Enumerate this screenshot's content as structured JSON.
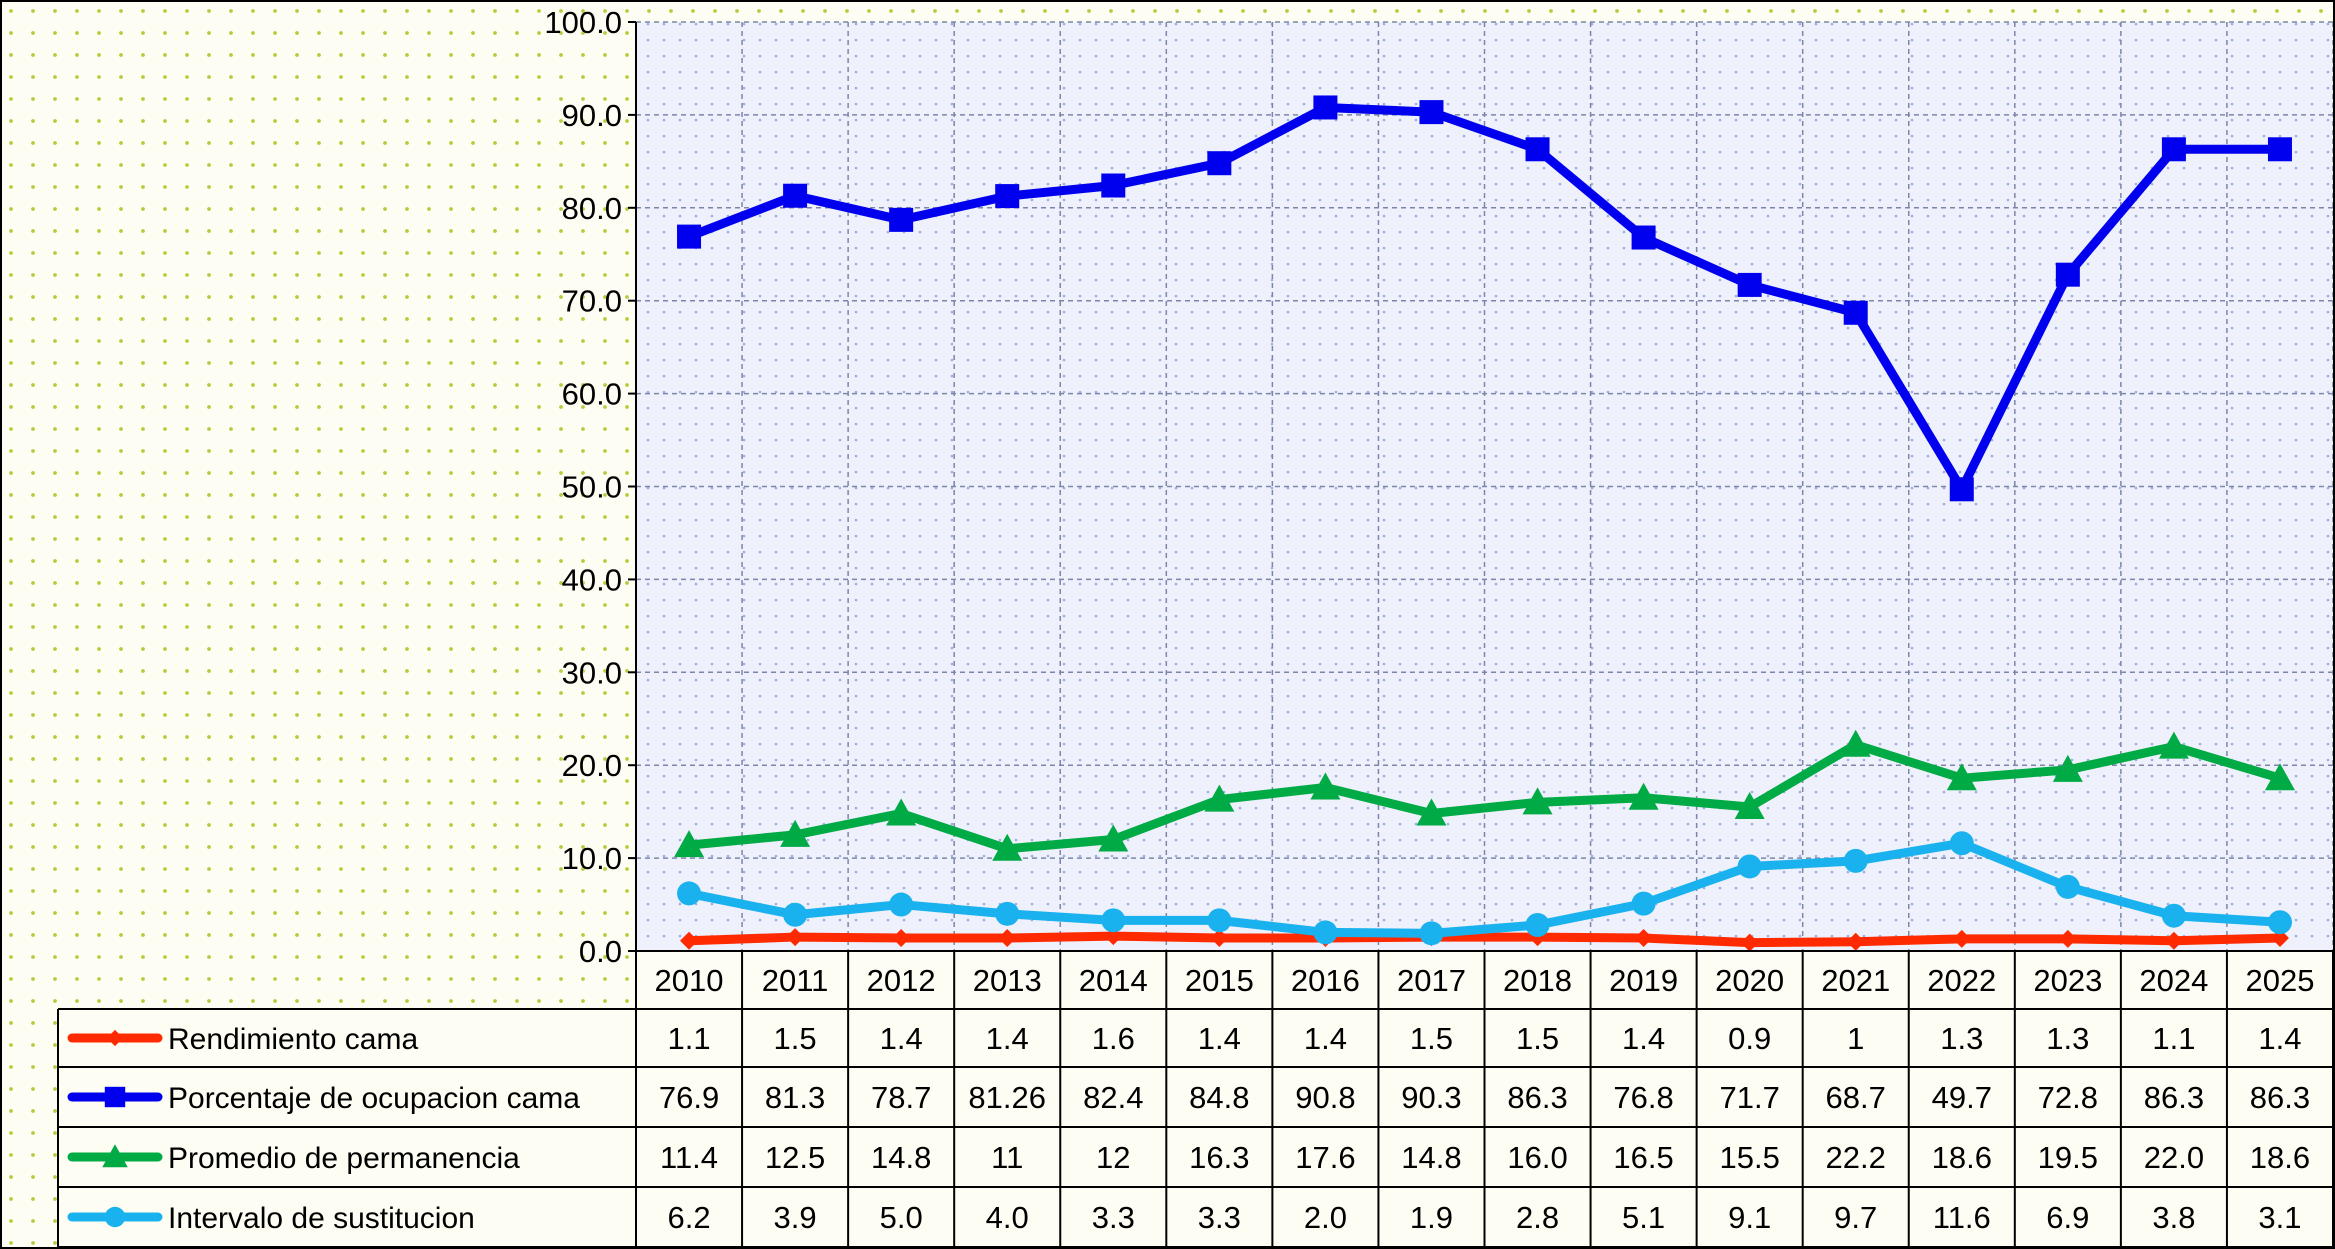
{
  "chart_data": {
    "type": "line",
    "categories": [
      "2010",
      "2011",
      "2012",
      "2013",
      "2014",
      "2015",
      "2016",
      "2017",
      "2018",
      "2019",
      "2020",
      "2021",
      "2022",
      "2023",
      "2024",
      "2025"
    ],
    "ylim": [
      0,
      100
    ],
    "yticks": [
      "0.0",
      "10.0",
      "20.0",
      "30.0",
      "40.0",
      "50.0",
      "60.0",
      "70.0",
      "80.0",
      "90.0",
      "100.0"
    ],
    "grid": true,
    "legend": "table-below",
    "series": [
      {
        "name": "Rendimiento cama",
        "color": "#ff2a00",
        "marker": "diamond",
        "values": [
          1.1,
          1.5,
          1.4,
          1.4,
          1.6,
          1.4,
          1.4,
          1.5,
          1.5,
          1.4,
          0.9,
          1,
          1.3,
          1.3,
          1.1,
          1.4
        ],
        "labels": [
          "1.1",
          "1.5",
          "1.4",
          "1.4",
          "1.6",
          "1.4",
          "1.4",
          "1.5",
          "1.5",
          "1.4",
          "0.9",
          "1",
          "1.3",
          "1.3",
          "1.1",
          "1.4"
        ]
      },
      {
        "name": "Porcentaje de ocupacion cama",
        "color": "#0000ee",
        "marker": "square",
        "values": [
          76.9,
          81.3,
          78.7,
          81.26,
          82.4,
          84.8,
          90.8,
          90.3,
          86.3,
          76.8,
          71.7,
          68.7,
          49.7,
          72.8,
          86.3,
          86.3
        ],
        "labels": [
          "76.9",
          "81.3",
          "78.7",
          "81.26",
          "82.4",
          "84.8",
          "90.8",
          "90.3",
          "86.3",
          "76.8",
          "71.7",
          "68.7",
          "49.7",
          "72.8",
          "86.3",
          "86.3"
        ]
      },
      {
        "name": "Promedio de permanencia",
        "color": "#00aa44",
        "marker": "triangle",
        "values": [
          11.4,
          12.5,
          14.8,
          11,
          12,
          16.3,
          17.6,
          14.8,
          16.0,
          16.5,
          15.5,
          22.2,
          18.6,
          19.5,
          22.0,
          18.6
        ],
        "labels": [
          "11.4",
          "12.5",
          "14.8",
          "11",
          "12",
          "16.3",
          "17.6",
          "14.8",
          "16.0",
          "16.5",
          "15.5",
          "22.2",
          "18.6",
          "19.5",
          "22.0",
          "18.6"
        ]
      },
      {
        "name": "Intervalo de sustitucion",
        "color": "#1ab2ee",
        "marker": "circle",
        "values": [
          6.2,
          3.9,
          5.0,
          4.0,
          3.3,
          3.3,
          2.0,
          1.9,
          2.8,
          5.1,
          9.1,
          9.7,
          11.6,
          6.9,
          3.8,
          3.1
        ],
        "labels": [
          "6.2",
          "3.9",
          "5.0",
          "4.0",
          "3.3",
          "3.3",
          "2.0",
          "1.9",
          "2.8",
          "5.1",
          "9.1",
          "9.7",
          "11.6",
          "6.9",
          "3.8",
          "3.1"
        ]
      }
    ]
  }
}
